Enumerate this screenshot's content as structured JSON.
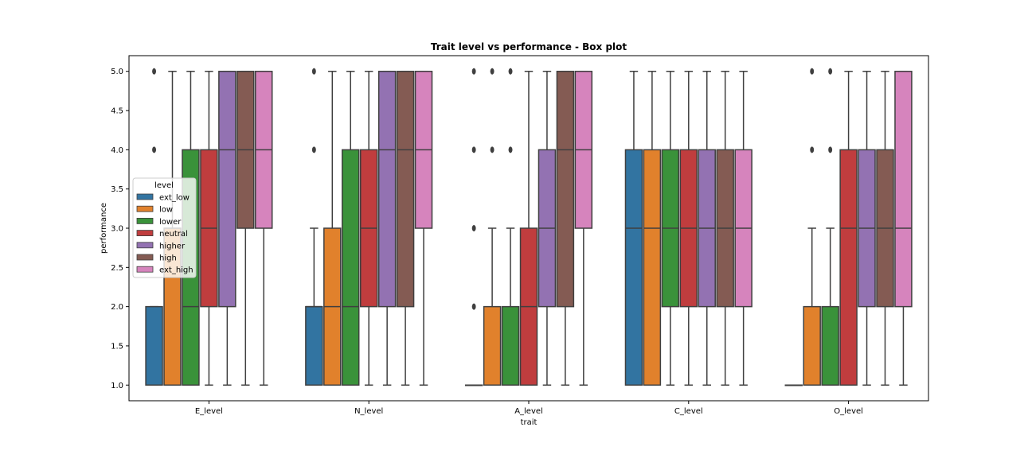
{
  "chart_data": {
    "type": "box",
    "title": "Trait level vs performance - Box plot",
    "xlabel": "trait",
    "ylabel": "performance",
    "ylim": [
      0.8,
      5.2
    ],
    "yticks": [
      "1.0",
      "1.5",
      "2.0",
      "2.5",
      "3.0",
      "3.5",
      "4.0",
      "4.5",
      "5.0"
    ],
    "categories": [
      "E_level",
      "N_level",
      "A_level",
      "C_level",
      "O_level"
    ],
    "legend": {
      "title": "level",
      "placement": "center-left"
    },
    "series": [
      {
        "name": "ext_low",
        "color": "#3274a1",
        "boxes": [
          {
            "whislo": 1,
            "q1": 1,
            "med": 1,
            "q3": 2,
            "whishi": 2,
            "fliers": [
              4,
              5
            ]
          },
          {
            "whislo": 1,
            "q1": 1,
            "med": 2,
            "q3": 2,
            "whishi": 3,
            "fliers": [
              4,
              5
            ]
          },
          {
            "whislo": 1,
            "q1": 1,
            "med": 1,
            "q3": 1,
            "whishi": 1,
            "fliers": [
              2,
              3,
              4,
              5
            ]
          },
          {
            "whislo": 1,
            "q1": 1,
            "med": 3,
            "q3": 4,
            "whishi": 5,
            "fliers": []
          },
          {
            "whislo": 1,
            "q1": 1,
            "med": 1,
            "q3": 1,
            "whishi": 1,
            "fliers": []
          }
        ]
      },
      {
        "name": "low",
        "color": "#e1812c",
        "boxes": [
          {
            "whislo": 1,
            "q1": 1,
            "med": 3,
            "q3": 3,
            "whishi": 5,
            "fliers": []
          },
          {
            "whislo": 1,
            "q1": 1,
            "med": 2,
            "q3": 3,
            "whishi": 5,
            "fliers": []
          },
          {
            "whislo": 1,
            "q1": 1,
            "med": 1,
            "q3": 2,
            "whishi": 3,
            "fliers": [
              4,
              5
            ]
          },
          {
            "whislo": 1,
            "q1": 1,
            "med": 3,
            "q3": 4,
            "whishi": 5,
            "fliers": []
          },
          {
            "whislo": 1,
            "q1": 1,
            "med": 1,
            "q3": 2,
            "whishi": 3,
            "fliers": [
              4,
              5
            ]
          }
        ]
      },
      {
        "name": "lower",
        "color": "#3a923a",
        "boxes": [
          {
            "whislo": 1,
            "q1": 1,
            "med": 2,
            "q3": 4,
            "whishi": 5,
            "fliers": []
          },
          {
            "whislo": 1,
            "q1": 1,
            "med": 2,
            "q3": 4,
            "whishi": 5,
            "fliers": []
          },
          {
            "whislo": 1,
            "q1": 1,
            "med": 1,
            "q3": 2,
            "whishi": 3,
            "fliers": [
              4,
              5
            ]
          },
          {
            "whislo": 1,
            "q1": 2,
            "med": 3,
            "q3": 4,
            "whishi": 5,
            "fliers": []
          },
          {
            "whislo": 1,
            "q1": 1,
            "med": 1,
            "q3": 2,
            "whishi": 3,
            "fliers": [
              4,
              5
            ]
          }
        ]
      },
      {
        "name": "neutral",
        "color": "#c03d3e",
        "boxes": [
          {
            "whislo": 1,
            "q1": 2,
            "med": 3,
            "q3": 4,
            "whishi": 5,
            "fliers": []
          },
          {
            "whislo": 1,
            "q1": 2,
            "med": 3,
            "q3": 4,
            "whishi": 5,
            "fliers": []
          },
          {
            "whislo": 1,
            "q1": 1,
            "med": 2,
            "q3": 3,
            "whishi": 5,
            "fliers": []
          },
          {
            "whislo": 1,
            "q1": 2,
            "med": 3,
            "q3": 4,
            "whishi": 5,
            "fliers": []
          },
          {
            "whislo": 1,
            "q1": 1,
            "med": 3,
            "q3": 4,
            "whishi": 5,
            "fliers": []
          }
        ]
      },
      {
        "name": "higher",
        "color": "#9372b2",
        "boxes": [
          {
            "whislo": 1,
            "q1": 2,
            "med": 4,
            "q3": 5,
            "whishi": 5,
            "fliers": []
          },
          {
            "whislo": 1,
            "q1": 2,
            "med": 4,
            "q3": 5,
            "whishi": 5,
            "fliers": []
          },
          {
            "whislo": 1,
            "q1": 2,
            "med": 3,
            "q3": 4,
            "whishi": 5,
            "fliers": []
          },
          {
            "whislo": 1,
            "q1": 2,
            "med": 3,
            "q3": 4,
            "whishi": 5,
            "fliers": []
          },
          {
            "whislo": 1,
            "q1": 2,
            "med": 3,
            "q3": 4,
            "whishi": 5,
            "fliers": []
          }
        ]
      },
      {
        "name": "high",
        "color": "#845b53",
        "boxes": [
          {
            "whislo": 1,
            "q1": 3,
            "med": 4,
            "q3": 5,
            "whishi": 5,
            "fliers": []
          },
          {
            "whislo": 1,
            "q1": 2,
            "med": 4,
            "q3": 5,
            "whishi": 5,
            "fliers": []
          },
          {
            "whislo": 1,
            "q1": 2,
            "med": 4,
            "q3": 5,
            "whishi": 5,
            "fliers": []
          },
          {
            "whislo": 1,
            "q1": 2,
            "med": 3,
            "q3": 4,
            "whishi": 5,
            "fliers": []
          },
          {
            "whislo": 1,
            "q1": 2,
            "med": 3,
            "q3": 4,
            "whishi": 5,
            "fliers": []
          }
        ]
      },
      {
        "name": "ext_high",
        "color": "#d684bd",
        "boxes": [
          {
            "whislo": 1,
            "q1": 3,
            "med": 4,
            "q3": 5,
            "whishi": 5,
            "fliers": []
          },
          {
            "whislo": 1,
            "q1": 3,
            "med": 4,
            "q3": 5,
            "whishi": 5,
            "fliers": []
          },
          {
            "whislo": 1,
            "q1": 3,
            "med": 4,
            "q3": 5,
            "whishi": 5,
            "fliers": []
          },
          {
            "whislo": 1,
            "q1": 2,
            "med": 3,
            "q3": 4,
            "whishi": 5,
            "fliers": []
          },
          {
            "whislo": 1,
            "q1": 2,
            "med": 3,
            "q3": 5,
            "whishi": 5,
            "fliers": []
          }
        ]
      }
    ]
  }
}
